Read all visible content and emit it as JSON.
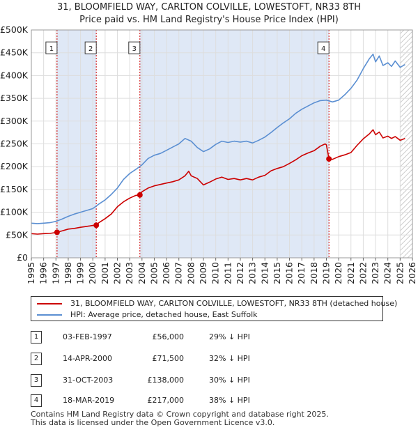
{
  "chart_data": {
    "type": "line",
    "title": "31, BLOOMFIELD WAY, CARLTON COLVILLE, LOWESTOFT, NR33 8TH",
    "subtitle": "Price paid vs. HM Land Registry's House Price Index (HPI)",
    "xlabel": "",
    "ylabel": "",
    "xlim": [
      1995,
      2026
    ],
    "ylim": [
      0,
      500000
    ],
    "y_ticks": [
      0,
      50000,
      100000,
      150000,
      200000,
      250000,
      300000,
      350000,
      400000,
      450000,
      500000
    ],
    "y_tick_labels": [
      "£0",
      "£50K",
      "£100K",
      "£150K",
      "£200K",
      "£250K",
      "£300K",
      "£350K",
      "£400K",
      "£450K",
      "£500K"
    ],
    "x_ticks": [
      "1995",
      "1996",
      "1997",
      "1998",
      "1999",
      "2000",
      "2001",
      "2002",
      "2003",
      "2004",
      "2005",
      "2006",
      "2007",
      "2008",
      "2009",
      "2010",
      "2011",
      "2012",
      "2013",
      "2014",
      "2015",
      "2016",
      "2017",
      "2018",
      "2019",
      "2020",
      "2021",
      "2022",
      "2023",
      "2024",
      "2025",
      "2026"
    ],
    "grid": true,
    "colors": {
      "property": "#cc0000",
      "hpi": "#5b8fd2",
      "shade": "#dfe8f6",
      "marker_line": "#cc0000",
      "grid": "#dddddd",
      "hatch": "#bbbbbb"
    },
    "series": [
      {
        "name": "31, BLOOMFIELD WAY, CARLTON COLVILLE, LOWESTOFT, NR33 8TH (detached house)",
        "color": "#cc0000",
        "x": [
          1995.0,
          1995.5,
          1996.0,
          1996.5,
          1997.09,
          1997.5,
          1998.0,
          1998.5,
          1999.0,
          1999.5,
          2000.0,
          2000.28,
          2000.5,
          2001.0,
          2001.5,
          2002.0,
          2002.5,
          2003.0,
          2003.5,
          2003.83,
          2004.0,
          2004.5,
          2005.0,
          2005.5,
          2006.0,
          2006.5,
          2007.0,
          2007.5,
          2007.8,
          2008.0,
          2008.5,
          2009.0,
          2009.5,
          2010.0,
          2010.5,
          2011.0,
          2011.5,
          2012.0,
          2012.5,
          2013.0,
          2013.5,
          2014.0,
          2014.5,
          2015.0,
          2015.5,
          2016.0,
          2016.5,
          2017.0,
          2017.5,
          2018.0,
          2018.5,
          2018.9,
          2019.0,
          2019.21,
          2019.5,
          2020.0,
          2020.5,
          2021.0,
          2021.5,
          2022.0,
          2022.5,
          2022.8,
          2023.0,
          2023.3,
          2023.6,
          2024.0,
          2024.3,
          2024.6,
          2025.0,
          2025.4
        ],
        "values": [
          53000,
          52000,
          53000,
          53500,
          56000,
          59000,
          63000,
          64500,
          67000,
          69000,
          71000,
          71500,
          77000,
          86000,
          96000,
          112000,
          123000,
          131000,
          137000,
          138000,
          145000,
          153000,
          158000,
          161000,
          164000,
          167000,
          171000,
          180000,
          190000,
          180000,
          174000,
          160000,
          166000,
          173000,
          177000,
          172000,
          174000,
          171000,
          174000,
          171000,
          177000,
          181000,
          191000,
          196000,
          200000,
          207000,
          215000,
          224000,
          230000,
          235000,
          245000,
          250000,
          248000,
          217000,
          216000,
          222000,
          226000,
          231000,
          247000,
          261000,
          272000,
          281000,
          270000,
          276000,
          263000,
          267000,
          262000,
          266000,
          258000,
          262000
        ]
      },
      {
        "name": "HPI: Average price, detached house, East Suffolk",
        "color": "#5b8fd2",
        "x": [
          1995.0,
          1995.5,
          1996.0,
          1996.5,
          1997.0,
          1997.5,
          1998.0,
          1998.5,
          1999.0,
          1999.5,
          2000.0,
          2000.5,
          2001.0,
          2001.5,
          2002.0,
          2002.5,
          2003.0,
          2003.5,
          2004.0,
          2004.5,
          2005.0,
          2005.5,
          2006.0,
          2006.5,
          2007.0,
          2007.5,
          2008.0,
          2008.5,
          2009.0,
          2009.5,
          2010.0,
          2010.5,
          2011.0,
          2011.5,
          2012.0,
          2012.5,
          2013.0,
          2013.5,
          2014.0,
          2014.5,
          2015.0,
          2015.5,
          2016.0,
          2016.5,
          2017.0,
          2017.5,
          2018.0,
          2018.5,
          2019.0,
          2019.5,
          2020.0,
          2020.5,
          2021.0,
          2021.5,
          2022.0,
          2022.5,
          2022.8,
          2023.0,
          2023.3,
          2023.6,
          2024.0,
          2024.3,
          2024.6,
          2025.0,
          2025.4
        ],
        "values": [
          76000,
          75000,
          76000,
          77000,
          80000,
          85000,
          91000,
          96000,
          100000,
          104000,
          108000,
          118000,
          127000,
          139000,
          153000,
          172000,
          185000,
          194000,
          204000,
          218000,
          225000,
          229000,
          236000,
          243000,
          250000,
          262000,
          256000,
          242000,
          233000,
          239000,
          249000,
          256000,
          253000,
          256000,
          254000,
          256000,
          252000,
          258000,
          265000,
          275000,
          286000,
          296000,
          305000,
          317000,
          326000,
          333000,
          340000,
          345000,
          346000,
          342000,
          346000,
          358000,
          372000,
          390000,
          415000,
          437000,
          447000,
          430000,
          443000,
          422000,
          428000,
          420000,
          432000,
          418000,
          424000
        ]
      }
    ],
    "sale_markers": [
      {
        "label": "1",
        "x": 1997.09,
        "value": 56000
      },
      {
        "label": "2",
        "x": 2000.28,
        "value": 71500
      },
      {
        "label": "3",
        "x": 2003.83,
        "value": 138000
      },
      {
        "label": "4",
        "x": 2019.21,
        "value": 217000
      }
    ],
    "shaded_ranges": [
      [
        1997.09,
        2000.28
      ],
      [
        2003.83,
        2019.21
      ]
    ],
    "hatched_from": 2025.0
  },
  "legend": {
    "property_label": "31, BLOOMFIELD WAY, CARLTON COLVILLE, LOWESTOFT, NR33 8TH (detached house)",
    "hpi_label": "HPI: Average price, detached house, East Suffolk"
  },
  "sales": [
    {
      "num": "1",
      "date": "03-FEB-1997",
      "price": "£56,000",
      "hpi": "29% ↓ HPI"
    },
    {
      "num": "2",
      "date": "14-APR-2000",
      "price": "£71,500",
      "hpi": "32% ↓ HPI"
    },
    {
      "num": "3",
      "date": "31-OCT-2003",
      "price": "£138,000",
      "hpi": "30% ↓ HPI"
    },
    {
      "num": "4",
      "date": "18-MAR-2019",
      "price": "£217,000",
      "hpi": "38% ↓ HPI"
    }
  ],
  "footer": {
    "line1": "Contains HM Land Registry data © Crown copyright and database right 2025.",
    "line2": "This data is licensed under the Open Government Licence v3.0."
  }
}
